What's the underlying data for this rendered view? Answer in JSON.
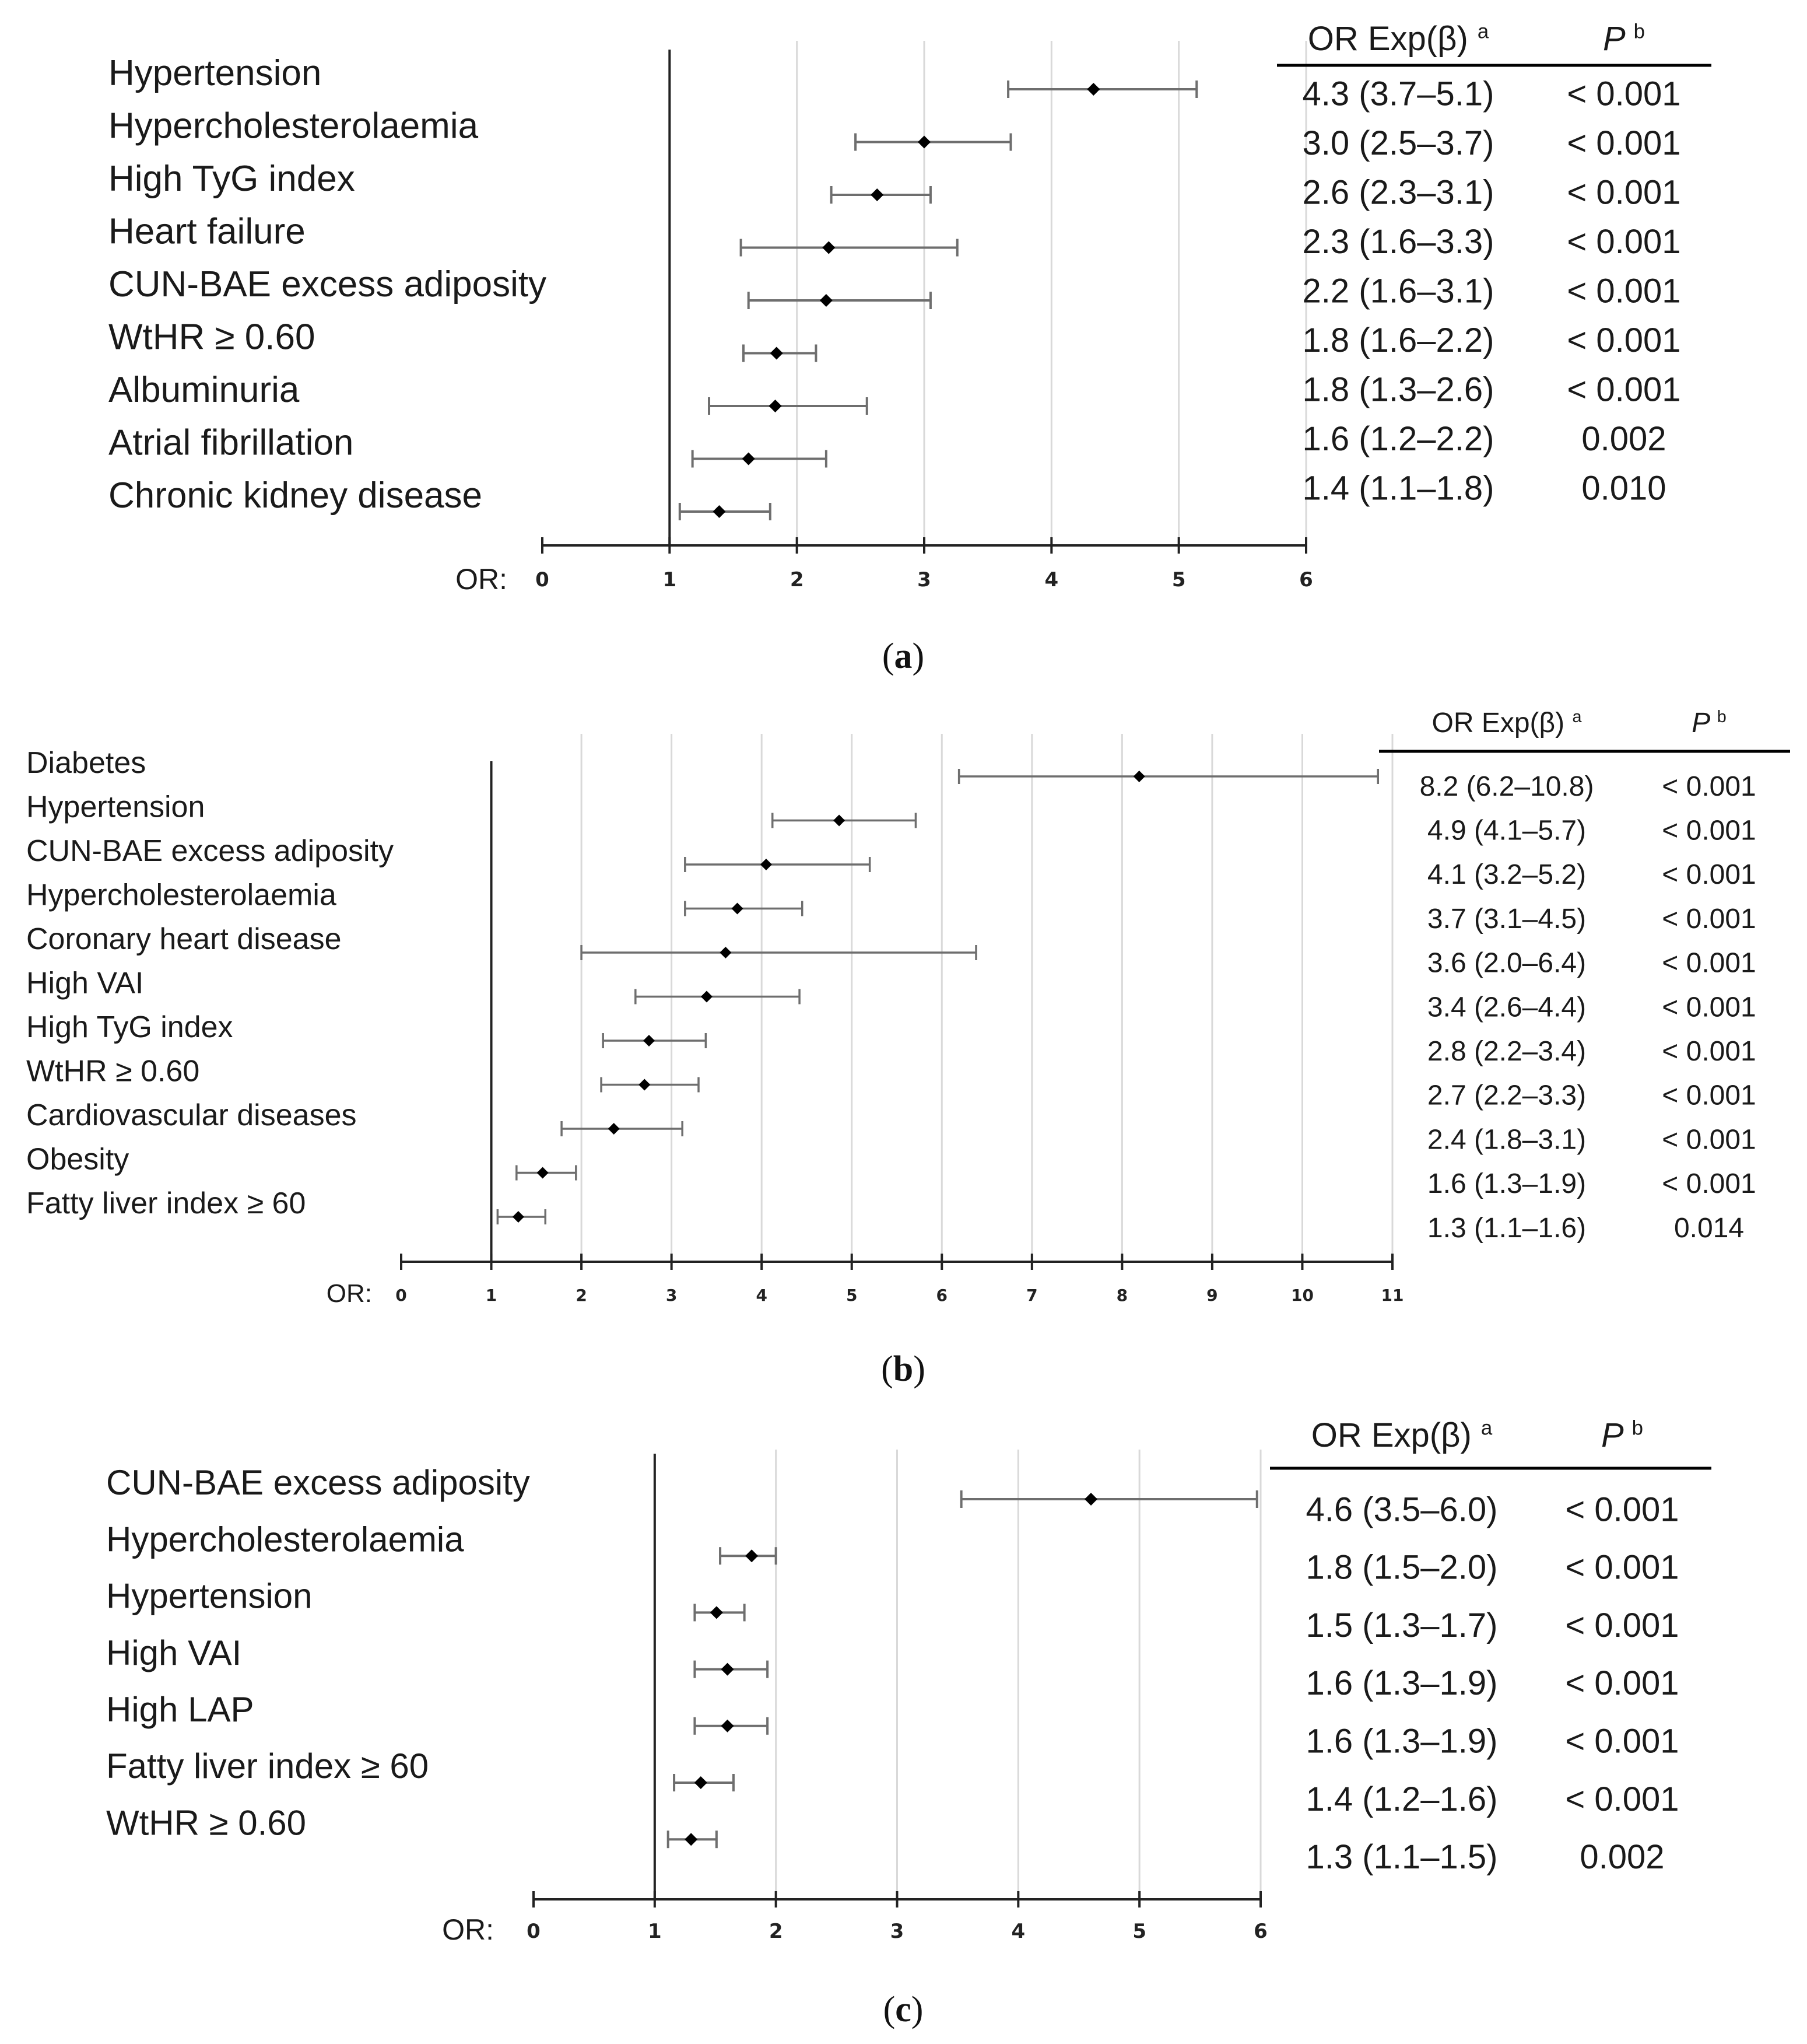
{
  "colors": {
    "grid": "#d9d9d9",
    "axis": "#222222",
    "errorbar": "#6e6e6e",
    "point": "#000000",
    "text": "#1a1a1a"
  },
  "chart_data": [
    {
      "type": "forest",
      "panel": "a",
      "caption_letter": "a",
      "axis_label": "OR:",
      "xlim": [
        0,
        6
      ],
      "xticks": [
        0,
        1,
        2,
        3,
        4,
        5,
        6
      ],
      "reference_line": 1,
      "grid": true,
      "col_header_or": "OR Exp(β)",
      "col_header_or_sup": "a",
      "col_header_p": "P",
      "col_header_p_sup": "b",
      "rows": [
        {
          "label": "Hypertension",
          "or": 4.33,
          "lo": 3.66,
          "hi": 5.14,
          "or_text": "4.3 (3.7–5.1)",
          "p_text": "< 0.001"
        },
        {
          "label": "Hypercholesterolaemia",
          "or": 3.0,
          "lo": 2.46,
          "hi": 3.68,
          "or_text": "3.0 (2.5–3.7)",
          "p_text": "< 0.001"
        },
        {
          "label": "High TyG index",
          "or": 2.63,
          "lo": 2.27,
          "hi": 3.05,
          "or_text": "2.6 (2.3–3.1)",
          "p_text": "< 0.001"
        },
        {
          "label": "Heart failure",
          "or": 2.25,
          "lo": 1.56,
          "hi": 3.26,
          "or_text": "2.3 (1.6–3.3)",
          "p_text": "< 0.001"
        },
        {
          "label": "CUN-BAE excess adiposity",
          "or": 2.23,
          "lo": 1.62,
          "hi": 3.05,
          "or_text": "2.2 (1.6–3.1)",
          "p_text": "< 0.001"
        },
        {
          "label": "WtHR ≥ 0.60",
          "or": 1.84,
          "lo": 1.58,
          "hi": 2.15,
          "or_text": "1.8 (1.6–2.2)",
          "p_text": "< 0.001"
        },
        {
          "label": "Albuminuria",
          "or": 1.83,
          "lo": 1.31,
          "hi": 2.55,
          "or_text": "1.8 (1.3–2.6)",
          "p_text": "< 0.001"
        },
        {
          "label": "Atrial fibrillation",
          "or": 1.62,
          "lo": 1.18,
          "hi": 2.23,
          "or_text": "1.6 (1.2–2.2)",
          "p_text": "0.002"
        },
        {
          "label": "Chronic kidney disease",
          "or": 1.39,
          "lo": 1.08,
          "hi": 1.79,
          "or_text": "1.4 (1.1–1.8)",
          "p_text": "0.010"
        }
      ]
    },
    {
      "type": "forest",
      "panel": "b",
      "caption_letter": "b",
      "axis_label": "OR:",
      "xlim": [
        0,
        11
      ],
      "xticks": [
        0,
        1,
        2,
        3,
        4,
        5,
        6,
        7,
        8,
        9,
        10,
        11
      ],
      "reference_line": 1,
      "grid": true,
      "col_header_or": "OR Exp(β)",
      "col_header_or_sup": "a",
      "col_header_p": "P",
      "col_header_p_sup": "b",
      "rows": [
        {
          "label": "Diabetes",
          "or": 8.19,
          "lo": 6.19,
          "hi": 10.84,
          "or_text": "8.2 (6.2–10.8)",
          "p_text": "< 0.001"
        },
        {
          "label": "Hypertension",
          "or": 4.86,
          "lo": 4.12,
          "hi": 5.71,
          "or_text": "4.9 (4.1–5.7)",
          "p_text": "< 0.001"
        },
        {
          "label": "CUN-BAE excess adiposity",
          "or": 4.05,
          "lo": 3.15,
          "hi": 5.2,
          "or_text": "4.1 (3.2–5.2)",
          "p_text": "< 0.001"
        },
        {
          "label": "Hypercholesterolaemia",
          "or": 3.73,
          "lo": 3.15,
          "hi": 4.45,
          "or_text": "3.7 (3.1–4.5)",
          "p_text": "< 0.001"
        },
        {
          "label": "Coronary heart disease",
          "or": 3.6,
          "lo": 2.0,
          "hi": 6.38,
          "or_text": "3.6 (2.0–6.4)",
          "p_text": "< 0.001"
        },
        {
          "label": "High VAI",
          "or": 3.39,
          "lo": 2.6,
          "hi": 4.42,
          "or_text": "3.4 (2.6–4.4)",
          "p_text": "< 0.001"
        },
        {
          "label": "High TyG index",
          "or": 2.75,
          "lo": 2.24,
          "hi": 3.38,
          "or_text": "2.8 (2.2–3.4)",
          "p_text": "< 0.001"
        },
        {
          "label": "WtHR ≥ 0.60",
          "or": 2.7,
          "lo": 2.22,
          "hi": 3.3,
          "or_text": "2.7 (2.2–3.3)",
          "p_text": "< 0.001"
        },
        {
          "label": "Cardiovascular diseases",
          "or": 2.36,
          "lo": 1.78,
          "hi": 3.12,
          "or_text": "2.4 (1.8–3.1)",
          "p_text": "< 0.001"
        },
        {
          "label": "Obesity",
          "or": 1.57,
          "lo": 1.28,
          "hi": 1.94,
          "or_text": "1.6 (1.3–1.9)",
          "p_text": "< 0.001"
        },
        {
          "label": "Fatty liver index ≥ 60",
          "or": 1.3,
          "lo": 1.07,
          "hi": 1.6,
          "or_text": "1.3 (1.1–1.6)",
          "p_text": "0.014"
        }
      ]
    },
    {
      "type": "forest",
      "panel": "c",
      "caption_letter": "c",
      "axis_label": "OR:",
      "xlim": [
        0,
        6
      ],
      "xticks": [
        0,
        1,
        2,
        3,
        4,
        5,
        6
      ],
      "reference_line": 1,
      "grid": true,
      "col_header_or": "OR Exp(β)",
      "col_header_or_sup": "a",
      "col_header_p": "P",
      "col_header_p_sup": "b",
      "rows": [
        {
          "label": "CUN-BAE excess adiposity",
          "or": 4.6,
          "lo": 3.53,
          "hi": 5.97,
          "or_text": "4.6 (3.5–6.0)",
          "p_text": "< 0.001"
        },
        {
          "label": "Hypercholesterolaemia",
          "or": 1.8,
          "lo": 1.54,
          "hi": 2.0,
          "or_text": "1.8 (1.5–2.0)",
          "p_text": "< 0.001"
        },
        {
          "label": "Hypertension",
          "or": 1.51,
          "lo": 1.33,
          "hi": 1.74,
          "or_text": "1.5 (1.3–1.7)",
          "p_text": "< 0.001"
        },
        {
          "label": "High VAI",
          "or": 1.6,
          "lo": 1.33,
          "hi": 1.93,
          "or_text": "1.6 (1.3–1.9)",
          "p_text": "< 0.001"
        },
        {
          "label": "High LAP",
          "or": 1.6,
          "lo": 1.33,
          "hi": 1.93,
          "or_text": "1.6 (1.3–1.9)",
          "p_text": "< 0.001"
        },
        {
          "label": "Fatty liver index ≥ 60",
          "or": 1.38,
          "lo": 1.16,
          "hi": 1.65,
          "or_text": "1.4 (1.2–1.6)",
          "p_text": "< 0.001"
        },
        {
          "label": "WtHR ≥ 0.60",
          "or": 1.3,
          "lo": 1.11,
          "hi": 1.51,
          "or_text": "1.3 (1.1–1.5)",
          "p_text": "0.002"
        }
      ]
    }
  ]
}
